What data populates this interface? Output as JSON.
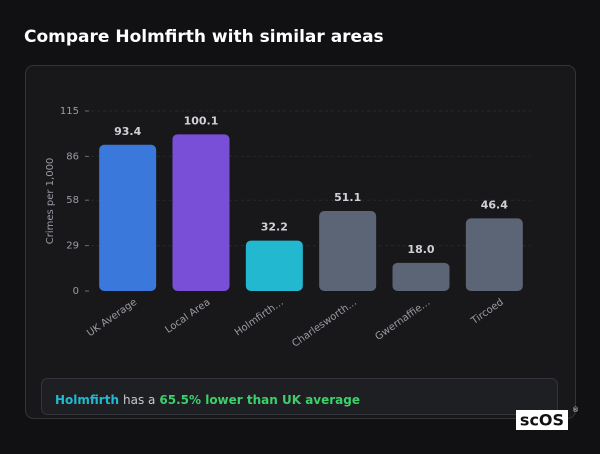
{
  "page_title": "Compare Holmfirth with similar areas",
  "chart_data": {
    "type": "bar",
    "y_label": "Crimes per 1,000",
    "categories": [
      "UK Average",
      "Local Area",
      "Holmfirth…",
      "Charlesworth…",
      "Gwernaffie…",
      "Tircoed"
    ],
    "values": [
      93.4,
      100.1,
      32.2,
      51.1,
      18.0,
      46.4
    ],
    "value_labels": [
      "93.4",
      "100.1",
      "32.2",
      "51.1",
      "18.0",
      "46.4"
    ],
    "colors": [
      "#3a78dc",
      "#7a4fd8",
      "#22b9d0",
      "#5b6576",
      "#5b6576",
      "#5b6576"
    ],
    "ylim": [
      0,
      115
    ],
    "yticks": [
      0,
      29,
      58,
      86,
      115
    ],
    "grid": true
  },
  "footer": {
    "area": "Holmfirth",
    "middle": "has a",
    "highlight": "65.5% lower than UK average"
  },
  "logo": {
    "text": "scOS",
    "mark": "®"
  }
}
